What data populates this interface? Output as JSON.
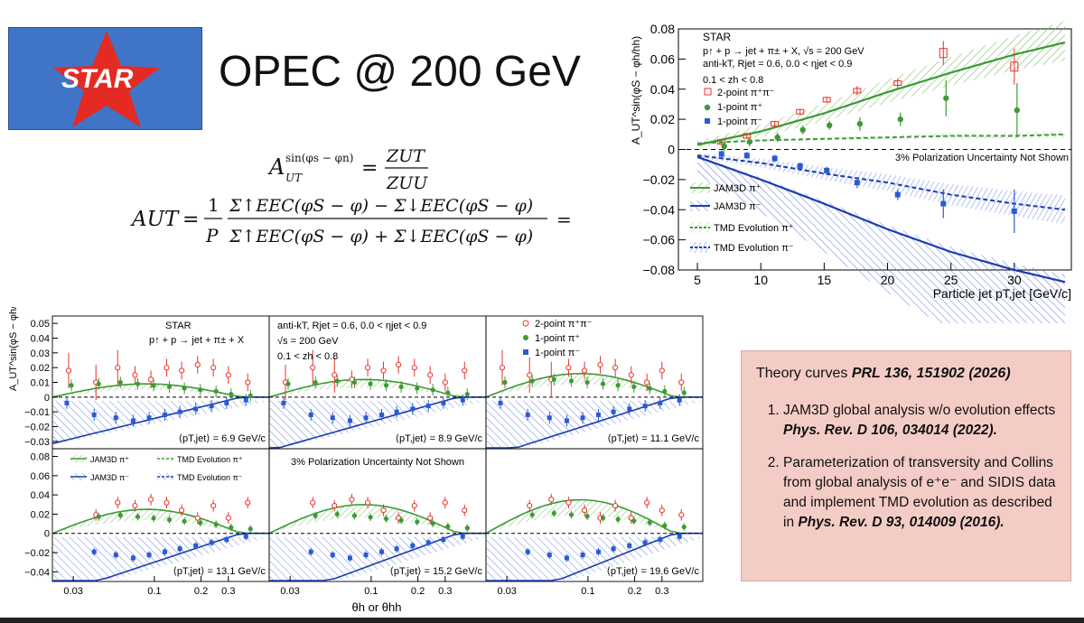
{
  "slide": {
    "logo_text": "STAR",
    "title": "OPEC @ 200 GeV",
    "eq1": {
      "lhs": "A",
      "lhs_sup": "sin(φs − φn)",
      "lhs_sub": "UT",
      "num": "ZUT",
      "den": "ZUU"
    },
    "eq2": {
      "lhs": "AUT",
      "pre": "1",
      "pre_den": "P",
      "num": "Σ↑EEC(φS − φ) − Σ↓EEC(φS − φ)",
      "den": "Σ↑EEC(φS − φ) + Σ↓EEC(φS − φ)",
      "tail": "="
    }
  },
  "theory_box": {
    "heading_plain": "Theory curves ",
    "heading_ref": "PRL 136, 151902 (2026)",
    "items": [
      {
        "plain": "JAM3D global analysis w/o evolution effects ",
        "ref": "Phys. Rev. D 106, 034014 (2022)."
      },
      {
        "plain": "Parameterization of  transversity and Collins from global analysis of e⁺e⁻ and SIDIS data and implement TMD evolution as described in ",
        "ref": "Phys. Rev. D 93, 014009 (2016)."
      }
    ]
  },
  "colors": {
    "red": "#e8322a",
    "green": "#3d9a35",
    "blue": "#2a5ad7",
    "green_band": "#7cc06a",
    "blue_band": "#5b7be0",
    "logo_bg": "#3f74c7",
    "theory_bg": "#f4ccc6"
  },
  "top_chart": {
    "star_label": "STAR",
    "process": "p↑ + p → jet + π± + X, √s = 200 GeV",
    "cuts": "anti-kT, Rjet = 0.6, 0.0 < ηjet < 0.9",
    "zcut": "0.1 < zh < 0.8",
    "legend_markers": [
      "2-point π⁺π⁻",
      "1-point π⁺",
      "1-point π⁻"
    ],
    "legend_curves": [
      "JAM3D π⁺",
      "JAM3D π⁻",
      "TMD Evolution π⁺",
      "TMD Evolution π⁻"
    ],
    "note": "3% Polarization Uncertainty Not Shown",
    "xlabel": "Particle jet pT,jet [GeV/c]",
    "ylabel": "A_UT^sin(φS − φh/hh)",
    "xticks": [
      "5",
      "10",
      "15",
      "20",
      "25",
      "30"
    ],
    "yticks": [
      "0.08",
      "0.06",
      "0.04",
      "0.02",
      "0",
      "−0.02",
      "−0.04",
      "−0.06",
      "−0.08"
    ]
  },
  "bottom_chart": {
    "ylabel": "A_UT^sin(φS − φh/hh)",
    "xlabel": "θh or θhh",
    "xticks": [
      "0.03",
      "0.1",
      "0.2",
      "0.3"
    ],
    "yticks_top": [
      "0.05",
      "0.04",
      "0.03",
      "0.02",
      "0.01",
      "0",
      "−0.01",
      "−0.02",
      "−0.03"
    ],
    "yticks_bottom": [
      "0.08",
      "0.06",
      "0.04",
      "0.02",
      "0",
      "−0.02",
      "−0.04"
    ],
    "panel_labels": [
      "⟨pT,jet⟩ = 6.9 GeV/c",
      "⟨pT,jet⟩ = 8.9 GeV/c",
      "⟨pT,jet⟩ = 11.1 GeV/c",
      "⟨pT,jet⟩ = 13.1 GeV/c",
      "⟨pT,jet⟩ = 15.2 GeV/c",
      "⟨pT,jet⟩ = 19.6 GeV/c"
    ],
    "p1_star": "STAR",
    "p1_process": "p↑ + p → jet + π± + X",
    "p2_cuts": "anti-kT, Rjet = 0.6, 0.0 < ηjet < 0.9",
    "p2_energy": "√s = 200 GeV",
    "p2_z": "0.1 < zh < 0.8",
    "p3_legend": [
      "2-point π⁺π⁻",
      "1-point π⁺",
      "1-point π⁻"
    ],
    "p4_legend": [
      "JAM3D π⁺",
      "JAM3D π⁻",
      "TMD Evolution π⁺",
      "TMD Evolution π⁻"
    ],
    "p5_note": "3% Polarization Uncertainty Not Shown"
  },
  "chart_data": [
    {
      "type": "scatter",
      "title": "",
      "xlabel": "Particle jet pT,jet [GeV/c]",
      "ylabel": "A_UT sin(φS − φh/hh)",
      "xlim": [
        3.5,
        34.5
      ],
      "ylim": [
        -0.08,
        0.08
      ],
      "series": [
        {
          "name": "2-point π⁺π⁻",
          "x": [
            6.9,
            8.9,
            11.1,
            13.1,
            15.2,
            17.6,
            20.8,
            24.4,
            30.0
          ],
          "y": [
            0.005,
            0.009,
            0.017,
            0.025,
            0.033,
            0.039,
            0.044,
            0.064,
            0.055
          ]
        },
        {
          "name": "1-point π⁺",
          "x": [
            6.9,
            8.9,
            11.1,
            13.1,
            15.2,
            17.6,
            20.8,
            24.4,
            30.0
          ],
          "y": [
            0.002,
            0.005,
            0.008,
            0.013,
            0.016,
            0.017,
            0.02,
            0.034,
            0.026
          ]
        },
        {
          "name": "1-point π⁻",
          "x": [
            6.9,
            8.9,
            11.1,
            13.1,
            15.2,
            17.6,
            20.8,
            24.4,
            30.0
          ],
          "y": [
            -0.003,
            -0.004,
            -0.006,
            -0.011,
            -0.014,
            -0.022,
            -0.03,
            -0.036,
            -0.041
          ]
        },
        {
          "name": "JAM3D π⁺",
          "x": [
            5,
            10,
            15,
            20,
            25,
            30,
            34
          ],
          "y": [
            0.003,
            0.012,
            0.024,
            0.038,
            0.051,
            0.063,
            0.071
          ]
        },
        {
          "name": "JAM3D π⁻",
          "x": [
            5,
            10,
            15,
            20,
            25,
            30,
            34
          ],
          "y": [
            -0.005,
            -0.02,
            -0.036,
            -0.053,
            -0.068,
            -0.08,
            -0.088
          ]
        },
        {
          "name": "TMD Evolution π⁺",
          "x": [
            5,
            10,
            15,
            20,
            25,
            30,
            34
          ],
          "y": [
            0.004,
            0.006,
            0.007,
            0.008,
            0.009,
            0.009,
            0.01
          ]
        },
        {
          "name": "TMD Evolution π⁻",
          "x": [
            5,
            10,
            15,
            20,
            25,
            30,
            34
          ],
          "y": [
            -0.004,
            -0.009,
            -0.016,
            -0.022,
            -0.03,
            -0.036,
            -0.04
          ]
        }
      ]
    }
  ]
}
